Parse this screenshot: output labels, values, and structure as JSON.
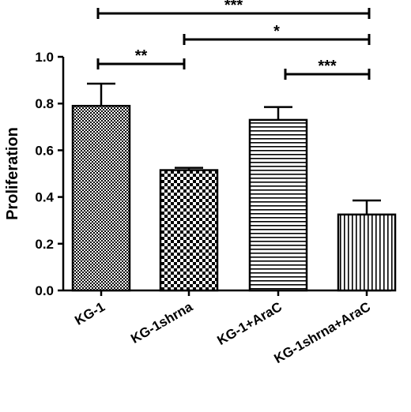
{
  "chart_data": {
    "type": "bar",
    "ylabel": "Proliferation",
    "xlabel": "",
    "ylim": [
      0,
      1.0
    ],
    "y_ticks": [
      0.0,
      0.2,
      0.4,
      0.6,
      0.8,
      1.0
    ],
    "y_tick_labels": [
      "0.0",
      "0.2",
      "0.4",
      "0.6",
      "0.8",
      "1.0"
    ],
    "categories": [
      "KG-1",
      "KG-1shrna",
      "KG-1+AraC",
      "KG-1shrna+AraC"
    ],
    "values": [
      0.79,
      0.515,
      0.73,
      0.325
    ],
    "errors": [
      0.095,
      0.01,
      0.055,
      0.06
    ],
    "fill_patterns": [
      "fine-checker",
      "coarse-checker",
      "horizontal-lines",
      "vertical-lines"
    ],
    "significance": [
      {
        "from": 0,
        "to": 1,
        "label": "**"
      },
      {
        "from": 1,
        "to": 3,
        "label": "*"
      },
      {
        "from": 2,
        "to": 3,
        "label": "***"
      },
      {
        "from": 0,
        "to": 3,
        "label": "***"
      }
    ],
    "grid": false,
    "legend": "none"
  }
}
